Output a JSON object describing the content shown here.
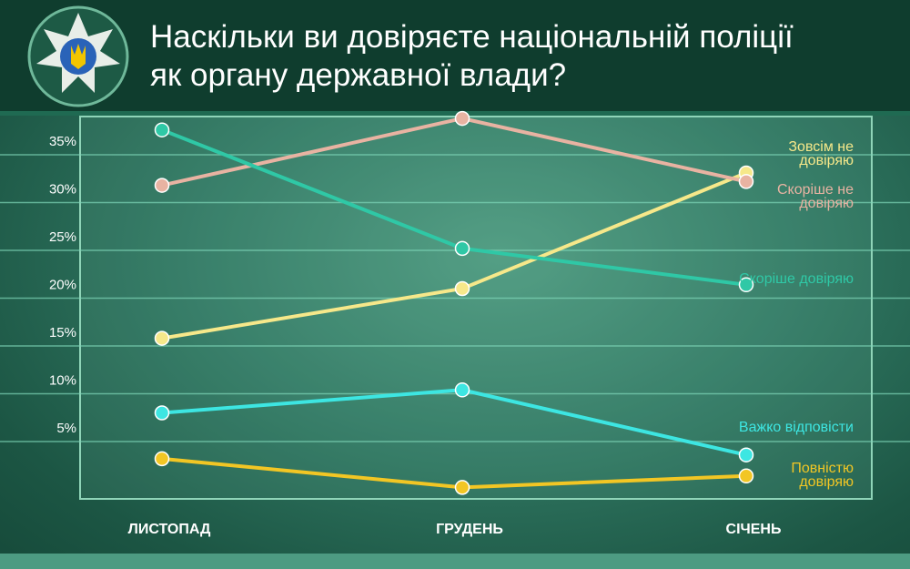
{
  "chart_data": {
    "type": "line",
    "title": "Наскільки ви довіряєте національній поліції як органу державної влади?",
    "categories": [
      "ЛИСТОПАД",
      "ГРУДЕНЬ",
      "СІЧЕНЬ"
    ],
    "ylim": [
      -1,
      39
    ],
    "yticks": [
      {
        "value": 5,
        "label": "5%"
      },
      {
        "value": 10,
        "label": "10%"
      },
      {
        "value": 15,
        "label": "15%"
      },
      {
        "value": 20,
        "label": "20%"
      },
      {
        "value": 25,
        "label": "25%"
      },
      {
        "value": 30,
        "label": "30%"
      },
      {
        "value": 35,
        "label": "35%"
      }
    ],
    "grid": true,
    "series": [
      {
        "name": "Зовсім не довіряю",
        "color": "#f6e88a",
        "values": [
          15.8,
          21.0,
          33.1
        ]
      },
      {
        "name": "Скоріше не довіряю",
        "color": "#e8b3a2",
        "values": [
          31.8,
          38.8,
          32.2
        ]
      },
      {
        "name": "Скоріше довіряю",
        "color": "#2fc8a6",
        "values": [
          37.6,
          25.2,
          21.4
        ]
      },
      {
        "name": "Важко відповісти",
        "color": "#3de6e2",
        "values": [
          8.0,
          10.4,
          3.6
        ]
      },
      {
        "name": "Повністю довіряю",
        "color": "#f2c624",
        "values": [
          3.2,
          0.2,
          1.4
        ]
      }
    ]
  }
}
